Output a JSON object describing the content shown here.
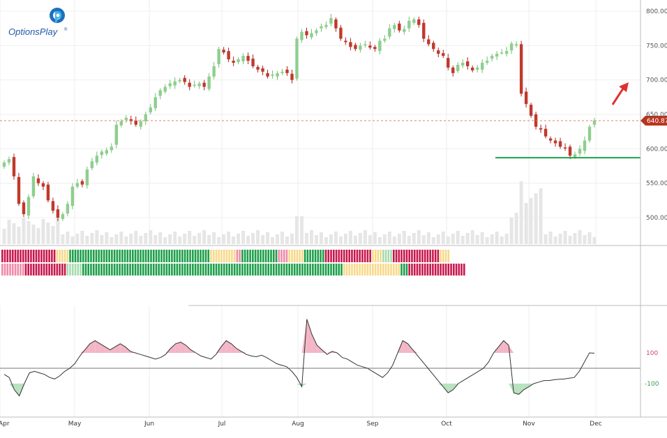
{
  "brand": {
    "name": "OptionsPlay",
    "mark": "®",
    "icon": "options-play-logo-icon"
  },
  "colors": {
    "up": "#8fce8f",
    "down": "#c0392b",
    "bandRed": "#c8174d",
    "bandGreen": "#1e9e4a",
    "bandYellow": "#f7d98a",
    "bandPink": "#f08aa8",
    "bandLightGreen": "#a6dcae",
    "support": "#1ea34a",
    "priceLine": "#e08060",
    "arrow": "#e03030",
    "oscPos": "#f3b6c6",
    "oscNeg": "#b8e2c0"
  },
  "chart_data": [
    {
      "type": "candlestick",
      "title": "",
      "x_months": [
        "Apr",
        "May",
        "Jun",
        "Jul",
        "Aug",
        "Sep",
        "Oct",
        "Nov",
        "Dec"
      ],
      "y_ticks": [
        "500.00",
        "550.00",
        "600.00",
        "650.00",
        "700.00",
        "750.00",
        "800.00"
      ],
      "ylim": [
        455,
        805
      ],
      "current_price": "640.87",
      "support_level": 587,
      "trend_arrow": "up",
      "closes": [
        580,
        585,
        560,
        520,
        505,
        530,
        560,
        550,
        545,
        525,
        510,
        500,
        505,
        520,
        545,
        550,
        548,
        570,
        582,
        590,
        596,
        598,
        603,
        635,
        640,
        645,
        640,
        635,
        640,
        650,
        660,
        675,
        685,
        690,
        695,
        698,
        700,
        697,
        690,
        693,
        695,
        690,
        705,
        720,
        745,
        740,
        730,
        725,
        730,
        735,
        728,
        720,
        715,
        712,
        705,
        708,
        710,
        712,
        710,
        700,
        760,
        770,
        765,
        768,
        772,
        778,
        780,
        790,
        775,
        760,
        755,
        748,
        745,
        750,
        752,
        747,
        745,
        757,
        760,
        775,
        780,
        772,
        774,
        786,
        788,
        780,
        760,
        752,
        745,
        738,
        735,
        718,
        710,
        722,
        725,
        720,
        714,
        718,
        725,
        728,
        735,
        738,
        740,
        742,
        753,
        752,
        680,
        665,
        648,
        632,
        628,
        618,
        612,
        608,
        603,
        601,
        590,
        592,
        600,
        612,
        632,
        641
      ],
      "volume_relative": "elevated early April, early August and early November; otherwise low"
    },
    {
      "type": "signal-bands",
      "rows": 2,
      "top_row": [
        {
          "color": "bandRed",
          "bars": 9
        },
        {
          "color": "bandRed",
          "bars": 12
        },
        {
          "color": "bandYellow",
          "bars": 5
        },
        {
          "color": "bandGreen",
          "bars": 54
        },
        {
          "color": "bandYellow",
          "bars": 10
        },
        {
          "color": "bandPink",
          "bars": 2
        },
        {
          "color": "bandGreen",
          "bars": 14
        },
        {
          "color": "bandPink",
          "bars": 4
        },
        {
          "color": "bandYellow",
          "bars": 6
        },
        {
          "color": "bandGreen",
          "bars": 8
        },
        {
          "color": "bandRed",
          "bars": 18
        },
        {
          "color": "bandYellow",
          "bars": 4
        },
        {
          "color": "bandLightGreen",
          "bars": 4
        },
        {
          "color": "bandRed",
          "bars": 18
        },
        {
          "color": "bandYellow",
          "bars": 4
        }
      ],
      "bottom_row": [
        {
          "color": "bandPink",
          "bars": 9
        },
        {
          "color": "bandRed",
          "bars": 16
        },
        {
          "color": "bandLightGreen",
          "bars": 6
        },
        {
          "color": "bandGreen",
          "bars": 100
        },
        {
          "color": "bandYellow",
          "bars": 22
        },
        {
          "color": "bandGreen",
          "bars": 3
        },
        {
          "color": "bandRed",
          "bars": 22
        }
      ]
    },
    {
      "type": "oscillator",
      "y_ticks": [
        "100",
        "-100"
      ],
      "values": [
        -40,
        -60,
        -140,
        -180,
        -100,
        -30,
        -20,
        -30,
        -40,
        -60,
        -70,
        -50,
        -20,
        0,
        30,
        80,
        120,
        160,
        180,
        160,
        140,
        120,
        140,
        160,
        140,
        110,
        100,
        90,
        80,
        70,
        60,
        70,
        90,
        130,
        160,
        170,
        150,
        120,
        100,
        80,
        70,
        60,
        90,
        140,
        180,
        160,
        130,
        110,
        90,
        80,
        75,
        85,
        70,
        50,
        30,
        20,
        10,
        -20,
        -60,
        -120,
        320,
        220,
        150,
        120,
        90,
        110,
        100,
        70,
        60,
        40,
        20,
        10,
        0,
        -20,
        -40,
        -60,
        -30,
        20,
        100,
        180,
        160,
        120,
        80,
        40,
        0,
        -40,
        -80,
        -120,
        -160,
        -140,
        -100,
        -80,
        -60,
        -40,
        -20,
        0,
        40,
        100,
        140,
        180,
        150,
        -160,
        -170,
        -140,
        -120,
        -100,
        -90,
        -80,
        -80,
        -75,
        -72,
        -70,
        -65,
        -60,
        -20,
        40,
        100,
        98
      ],
      "upper_line": 100,
      "lower_line": -100
    }
  ]
}
